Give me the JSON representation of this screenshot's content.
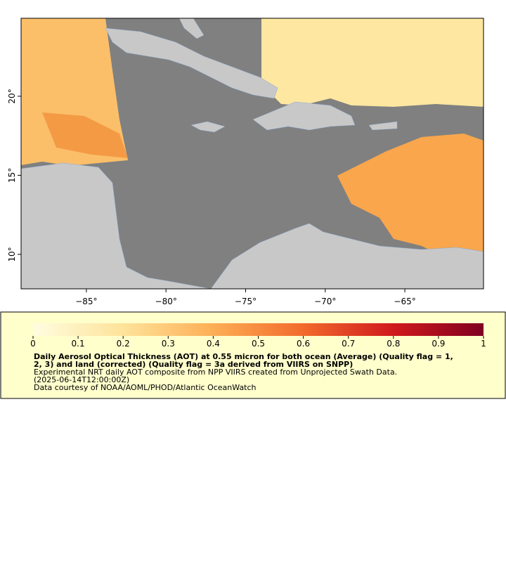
{
  "map": {
    "xlim": [
      -89.1,
      -60.06
    ],
    "ylim": [
      7.82,
      24.93
    ],
    "xticks": [
      {
        "value": -85,
        "label": "−85°"
      },
      {
        "value": -80,
        "label": "−80°"
      },
      {
        "value": -75,
        "label": "−75°"
      },
      {
        "value": -70,
        "label": "−70°"
      },
      {
        "value": -65,
        "label": "−65°"
      }
    ],
    "yticks": [
      {
        "value": 20,
        "label": "20°"
      },
      {
        "value": 15,
        "label": "15°"
      },
      {
        "value": 10,
        "label": "10°"
      }
    ]
  },
  "colorbar": {
    "range": [
      0,
      1
    ],
    "ticks": [
      0,
      0.1,
      0.2,
      0.3,
      0.4,
      0.5,
      0.6,
      0.7,
      0.8,
      0.9,
      1
    ]
  },
  "caption": {
    "title_lines": [
      "Daily Aerosol Optical Thickness (AOT) at 0.55 micron for both ocean (Average) (Quality flag = 1,",
      "2, 3) and land (corrected) (Quality flag = 3a derived from VIIRS on SNPP)"
    ],
    "lines": [
      "Experimental NRT daily AOT composite from NPP VIIRS created from Unprojected Swath Data.",
      "(2025-06-14T12:00:00Z)",
      "Data courtesy of NOAA/AOML/PHOD/Atlantic OceanWatch"
    ]
  }
}
